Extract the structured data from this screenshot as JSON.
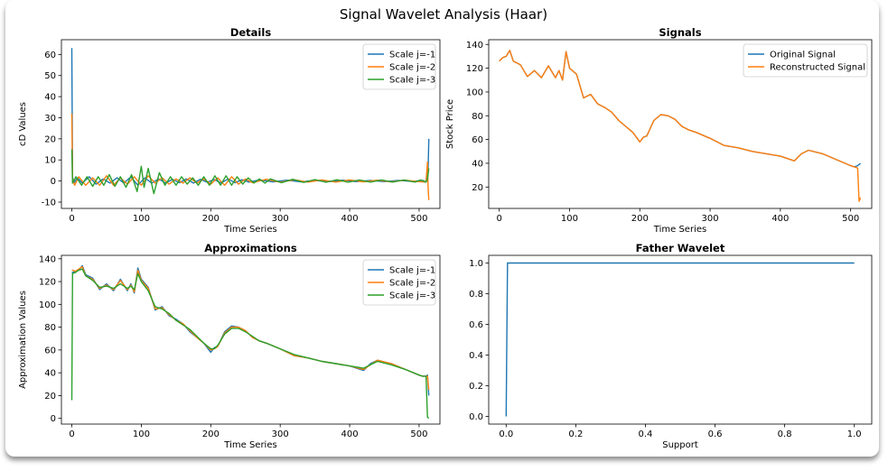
{
  "figure": {
    "title": "Signal Wavelet Analysis (Haar)"
  },
  "chart_data": [
    {
      "type": "line",
      "title": "Details",
      "xlabel": "Time Series",
      "ylabel": "cD Values",
      "xlim": [
        -15,
        530
      ],
      "ylim": [
        -13,
        67
      ],
      "xticks": [
        0,
        100,
        200,
        300,
        400,
        500
      ],
      "yticks": [
        -10,
        0,
        10,
        20,
        30,
        40,
        50,
        60
      ],
      "legend": "top-right",
      "series": [
        {
          "name": "Scale j=-1",
          "color": "#1f77b4",
          "x": [
            0,
            1,
            3,
            8,
            15,
            25,
            35,
            45,
            55,
            65,
            75,
            85,
            95,
            105,
            115,
            125,
            135,
            145,
            155,
            165,
            175,
            185,
            195,
            205,
            215,
            225,
            235,
            245,
            255,
            270,
            290,
            310,
            330,
            350,
            370,
            390,
            410,
            430,
            450,
            470,
            490,
            505,
            510,
            512,
            513,
            514
          ],
          "y": [
            63,
            2,
            -1,
            1.5,
            -1,
            2,
            -1.5,
            1,
            -1,
            1.5,
            -1,
            2,
            -2,
            1.5,
            -1,
            1,
            -1,
            0.8,
            -0.8,
            1,
            -1,
            0.8,
            -0.6,
            0.7,
            -1,
            1,
            -0.8,
            0.6,
            -0.5,
            0.5,
            -0.4,
            0.4,
            -0.4,
            0.3,
            -0.3,
            0.4,
            -0.3,
            0.3,
            -0.3,
            0.3,
            -0.2,
            0.3,
            -0.5,
            1,
            5,
            20
          ]
        },
        {
          "name": "Scale j=-2",
          "color": "#ff7f0e",
          "x": [
            0,
            1,
            4,
            10,
            20,
            30,
            40,
            50,
            60,
            70,
            80,
            90,
            100,
            110,
            120,
            130,
            140,
            150,
            160,
            170,
            180,
            190,
            200,
            210,
            220,
            230,
            240,
            250,
            260,
            280,
            300,
            320,
            340,
            360,
            380,
            400,
            420,
            440,
            460,
            480,
            500,
            510,
            512,
            513,
            514
          ],
          "y": [
            32,
            1,
            -2,
            2,
            -2,
            1.5,
            -2,
            2.5,
            -2,
            1.5,
            -1.5,
            2,
            -2,
            2.5,
            -1,
            1.5,
            -1.5,
            1,
            -1,
            1.5,
            -1,
            1,
            -1.5,
            1.5,
            -2,
            2,
            -1.5,
            1,
            -0.8,
            0.8,
            -0.6,
            0.6,
            -0.5,
            0.5,
            -0.5,
            0.5,
            -0.4,
            0.4,
            -0.4,
            0.4,
            -0.3,
            -0.5,
            9,
            -3,
            -9
          ]
        },
        {
          "name": "Scale j=-3",
          "color": "#2ca02c",
          "x": [
            0,
            1,
            6,
            14,
            22,
            30,
            38,
            46,
            54,
            62,
            70,
            78,
            86,
            94,
            100,
            104,
            110,
            118,
            126,
            134,
            142,
            150,
            158,
            166,
            174,
            182,
            190,
            198,
            206,
            214,
            222,
            230,
            238,
            246,
            254,
            262,
            270,
            278,
            286,
            302,
            318,
            334,
            350,
            366,
            382,
            398,
            414,
            430,
            446,
            462,
            478,
            494,
            502,
            510,
            512,
            514
          ],
          "y": [
            15,
            -1,
            2,
            -2,
            2,
            -2.5,
            2,
            -2,
            3,
            -2.5,
            2,
            -3,
            3,
            -5,
            7,
            -3,
            6,
            -6,
            4,
            -2,
            2,
            -2,
            2,
            -1.5,
            1.5,
            -2,
            2,
            -2,
            2.5,
            -2,
            2.5,
            -2,
            2,
            -1.5,
            1.5,
            -1,
            1,
            -1,
            1,
            -0.8,
            0.8,
            -0.7,
            0.7,
            -0.6,
            0.6,
            -0.6,
            0.5,
            -0.5,
            0.5,
            -0.5,
            0.5,
            -0.5,
            0.5,
            -0.5,
            1,
            6
          ]
        }
      ]
    },
    {
      "type": "line",
      "title": "Signals",
      "xlabel": "Time Series",
      "ylabel": "Stock Price",
      "xlim": [
        -15,
        530
      ],
      "ylim": [
        2,
        144
      ],
      "xticks": [
        0,
        100,
        200,
        300,
        400,
        500
      ],
      "yticks": [
        20,
        40,
        60,
        80,
        100,
        120,
        140
      ],
      "legend": "top-right",
      "series": [
        {
          "name": "Original Signal",
          "color": "#1f77b4",
          "x": [
            0,
            5,
            10,
            15,
            20,
            30,
            40,
            50,
            60,
            70,
            80,
            85,
            90,
            95,
            100,
            110,
            120,
            130,
            140,
            150,
            160,
            170,
            180,
            190,
            200,
            205,
            210,
            220,
            230,
            240,
            250,
            260,
            270,
            280,
            300,
            320,
            340,
            360,
            380,
            400,
            420,
            430,
            440,
            460,
            480,
            500,
            505,
            510,
            512,
            514
          ],
          "y": [
            126,
            129,
            130,
            135,
            126,
            123,
            113,
            118,
            112,
            122,
            112,
            118,
            110,
            134,
            120,
            115,
            95,
            98,
            90,
            87,
            83,
            76,
            71,
            66,
            58,
            62,
            63,
            76,
            81,
            80,
            77,
            71,
            68,
            66,
            61,
            55,
            53,
            50,
            48,
            46,
            42,
            48,
            51,
            48,
            43,
            38,
            37,
            38,
            39,
            40
          ]
        },
        {
          "name": "Reconstructed Signal",
          "color": "#ff7f0e",
          "x": [
            0,
            5,
            10,
            15,
            20,
            30,
            40,
            50,
            60,
            70,
            80,
            85,
            90,
            95,
            100,
            110,
            120,
            130,
            140,
            150,
            160,
            170,
            180,
            190,
            200,
            205,
            210,
            220,
            230,
            240,
            250,
            260,
            270,
            280,
            300,
            320,
            340,
            360,
            380,
            400,
            420,
            430,
            440,
            460,
            480,
            500,
            505,
            510,
            512,
            514
          ],
          "y": [
            126,
            129,
            130,
            135,
            126,
            123,
            113,
            118,
            112,
            122,
            112,
            118,
            110,
            134,
            120,
            115,
            95,
            98,
            90,
            87,
            83,
            76,
            71,
            66,
            58,
            62,
            63,
            76,
            81,
            80,
            77,
            71,
            68,
            66,
            61,
            55,
            53,
            50,
            48,
            46,
            42,
            48,
            51,
            48,
            43,
            38,
            37,
            36,
            8,
            11
          ]
        }
      ]
    },
    {
      "type": "line",
      "title": "Approximations",
      "xlabel": "Time Series",
      "ylabel": "Approximation Values",
      "xlim": [
        -15,
        530
      ],
      "ylim": [
        -5,
        143
      ],
      "xticks": [
        0,
        100,
        200,
        300,
        400,
        500
      ],
      "yticks": [
        0,
        20,
        40,
        60,
        80,
        100,
        120,
        140
      ],
      "legend": "top-right",
      "series": [
        {
          "name": "Scale j=-1",
          "color": "#1f77b4",
          "x": [
            0,
            1,
            5,
            10,
            15,
            20,
            30,
            40,
            50,
            60,
            70,
            80,
            85,
            90,
            95,
            100,
            110,
            120,
            130,
            140,
            150,
            160,
            170,
            180,
            190,
            200,
            205,
            210,
            220,
            230,
            240,
            250,
            260,
            270,
            280,
            300,
            320,
            340,
            360,
            380,
            400,
            420,
            430,
            440,
            460,
            480,
            500,
            505,
            510,
            512,
            514
          ],
          "y": [
            128,
            128,
            129,
            130,
            134,
            126,
            123,
            113,
            118,
            112,
            122,
            112,
            118,
            110,
            132,
            122,
            115,
            95,
            98,
            90,
            87,
            83,
            76,
            71,
            66,
            58,
            62,
            63,
            76,
            81,
            80,
            77,
            71,
            68,
            66,
            61,
            55,
            53,
            50,
            48,
            46,
            42,
            48,
            51,
            48,
            43,
            38,
            37,
            37,
            38,
            20
          ]
        },
        {
          "name": "Scale j=-2",
          "color": "#ff7f0e",
          "x": [
            0,
            1,
            5,
            10,
            15,
            20,
            30,
            40,
            50,
            60,
            70,
            80,
            85,
            90,
            95,
            100,
            110,
            120,
            130,
            140,
            150,
            160,
            170,
            180,
            190,
            200,
            205,
            210,
            220,
            230,
            240,
            250,
            260,
            270,
            280,
            300,
            320,
            340,
            360,
            380,
            400,
            420,
            430,
            440,
            460,
            480,
            500,
            505,
            510,
            512,
            514
          ],
          "y": [
            130,
            130,
            129,
            131,
            133,
            125,
            122,
            114,
            117,
            113,
            121,
            113,
            117,
            111,
            130,
            121,
            114,
            96,
            97,
            91,
            86,
            83,
            77,
            71,
            66,
            60,
            61,
            63,
            75,
            80,
            80,
            77,
            71,
            68,
            66,
            61,
            55,
            53,
            50,
            48,
            46,
            43,
            47,
            51,
            48,
            43,
            38,
            37,
            37,
            37,
            25
          ]
        },
        {
          "name": "Scale j=-3",
          "color": "#2ca02c",
          "x": [
            0,
            1,
            5,
            10,
            15,
            20,
            30,
            40,
            50,
            60,
            70,
            80,
            85,
            90,
            95,
            100,
            110,
            120,
            130,
            140,
            150,
            160,
            170,
            180,
            190,
            200,
            205,
            210,
            220,
            230,
            240,
            250,
            260,
            270,
            280,
            300,
            320,
            340,
            360,
            380,
            400,
            420,
            430,
            440,
            460,
            480,
            500,
            505,
            510,
            512,
            514
          ],
          "y": [
            16,
            127,
            128,
            130,
            131,
            125,
            121,
            115,
            116,
            114,
            118,
            114,
            116,
            113,
            127,
            120,
            112,
            98,
            96,
            92,
            86,
            82,
            78,
            72,
            66,
            61,
            61,
            64,
            74,
            79,
            79,
            76,
            72,
            68,
            66,
            61,
            56,
            53,
            50,
            48,
            46,
            44,
            47,
            50,
            47,
            43,
            38,
            37,
            37,
            1,
            0
          ]
        }
      ]
    },
    {
      "type": "line",
      "title": "Father Wavelet",
      "xlabel": "Support",
      "ylabel": "",
      "xlim": [
        -0.05,
        1.05
      ],
      "ylim": [
        -0.05,
        1.05
      ],
      "xticks": [
        0.0,
        0.2,
        0.4,
        0.6,
        0.8,
        1.0
      ],
      "yticks": [
        0.0,
        0.2,
        0.4,
        0.6,
        0.8,
        1.0
      ],
      "legend": "none",
      "series": [
        {
          "color": "#1f77b4",
          "x": [
            0.0,
            0.004,
            1.0
          ],
          "y": [
            0.0,
            1.0,
            1.0
          ]
        }
      ]
    }
  ]
}
